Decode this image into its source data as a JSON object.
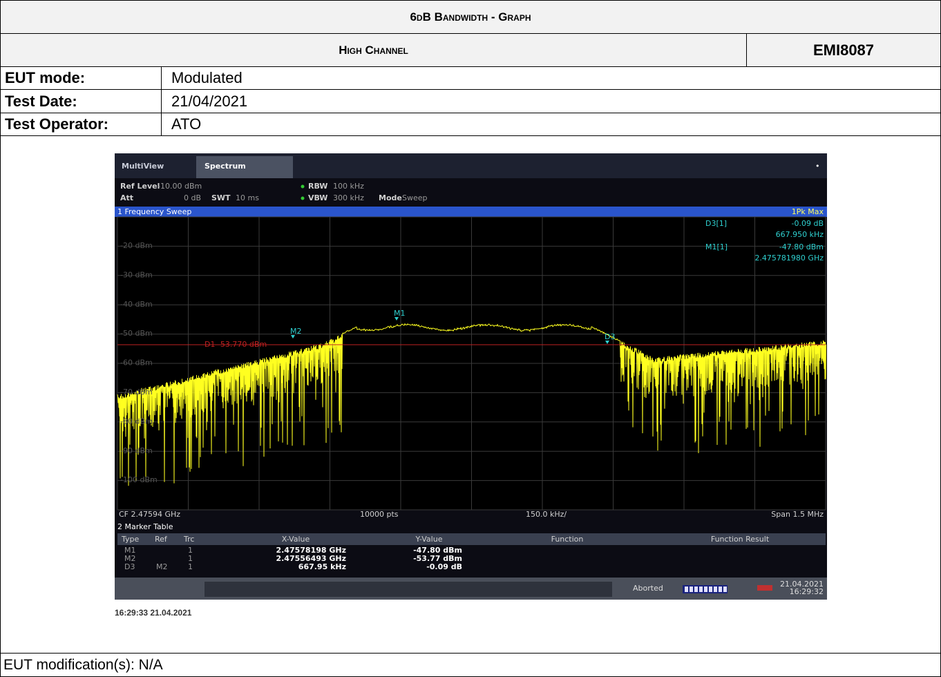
{
  "header": {
    "title": "6dB Bandwidth - Graph",
    "channel": "High Channel",
    "reference": "EMI8087"
  },
  "table": {
    "rows": [
      [
        "EUT mode:",
        "Modulated"
      ],
      [
        "Test Date:",
        "21/04/2021"
      ],
      [
        "Test Operator:",
        "ATO"
      ]
    ]
  },
  "screenshot": {
    "app": "MultiView",
    "tab": "Spectrum",
    "settings": [
      [
        "Ref Level",
        "-10.00 dBm"
      ],
      [
        "Att",
        "0 dB"
      ],
      [
        "SWT",
        "10 ms"
      ],
      [
        "RBW",
        "100 kHz"
      ],
      [
        "VBW",
        "300 kHz"
      ],
      [
        "Mode",
        "Sweep"
      ]
    ],
    "window_title": "1 Frequency Sweep",
    "trace_label": "1Pk Max",
    "y_labels": [
      "-20 dBm",
      "-30 dBm",
      "-40 dBm",
      "-50 dBm",
      "-60 dBm",
      "-70 dBm",
      "-80 dBm",
      "-90 dBm",
      "-100 dBm"
    ],
    "display_line": "D1 -53.770 dBm",
    "readout": [
      [
        "D3[1]",
        "-0.09 dB",
        "667.950 kHz"
      ],
      [
        "M1[1]",
        "-47.80 dBm",
        "2.475781980 GHz"
      ]
    ],
    "marker_flags": [
      "M1",
      "M2",
      "D3"
    ],
    "footer": [
      "CF 2.47594 GHz",
      "10000 pts",
      "150.0 kHz/",
      "Span 1.5 MHz"
    ],
    "marker_table": {
      "title": "2 Marker Table",
      "columns": [
        "Type",
        "Ref",
        "Trc",
        "X-Value",
        "Y-Value",
        "Function",
        "Function Result"
      ],
      "rows": [
        [
          "M1",
          "",
          "1",
          "2.47578198 GHz",
          "-47.80 dBm"
        ],
        [
          "M2",
          "",
          "1",
          "2.47556493 GHz",
          "-53.77 dBm"
        ],
        [
          "D3",
          "M2",
          "1",
          "667.95 kHz",
          "-0.09 dB"
        ]
      ]
    },
    "status": "Aborted",
    "status_date": "21.04.2021",
    "status_time": "16:29:32"
  },
  "timestamp": "16:29:33 21.04.2021",
  "footer": "EUT modification(s): N/A"
}
